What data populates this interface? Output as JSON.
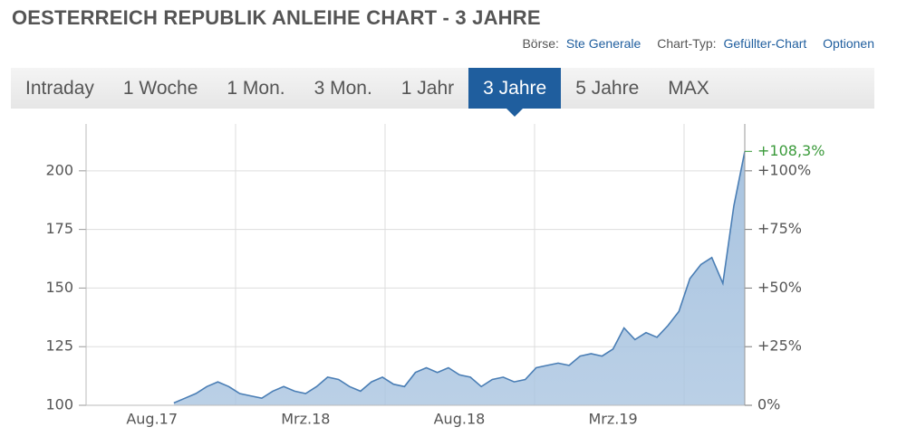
{
  "header": {
    "title": "OESTERREICH REPUBLIK ANLEIHE CHART - 3 JAHRE",
    "boerse_label": "Börse:",
    "boerse": "Ste Generale",
    "charttyp_label": "Chart-Typ:",
    "charttyp": "Gefüllter-Chart",
    "optionen": "Optionen"
  },
  "tabs": [
    "Intraday",
    "1 Woche",
    "1 Mon.",
    "3 Mon.",
    "1 Jahr",
    "3 Jahre",
    "5 Jahre",
    "MAX"
  ],
  "active_tab": 5,
  "chart_data": {
    "type": "area",
    "categories": [
      null,
      null,
      null,
      null,
      null,
      null,
      "Aug.17",
      null,
      null,
      null,
      null,
      null,
      null,
      null,
      null,
      null,
      null,
      null,
      null,
      null,
      "Mrz.18",
      null,
      null,
      null,
      null,
      null,
      null,
      null,
      null,
      null,
      null,
      null,
      null,
      null,
      "Aug.18",
      null,
      null,
      null,
      null,
      null,
      null,
      null,
      null,
      null,
      null,
      null,
      null,
      null,
      "Mrz.19",
      null,
      null,
      null,
      null,
      null,
      null,
      null,
      null,
      null,
      null,
      null,
      null
    ],
    "series": [
      {
        "name": "Oesterreich Republik Anleihe",
        "color": "#4a7eb5",
        "fill": "#a9c4e0",
        "values": [
          null,
          null,
          null,
          null,
          null,
          null,
          null,
          null,
          101,
          103,
          105,
          108,
          110,
          108,
          105,
          104,
          103,
          106,
          108,
          106,
          105,
          108,
          112,
          111,
          108,
          106,
          110,
          112,
          109,
          108,
          114,
          116,
          114,
          116,
          113,
          112,
          108,
          111,
          112,
          110,
          111,
          116,
          117,
          118,
          117,
          121,
          122,
          121,
          124,
          133,
          128,
          131,
          129,
          134,
          140,
          154,
          160,
          163,
          152,
          185,
          208.3
        ]
      }
    ],
    "ylim": [
      100,
      220
    ],
    "yticks": [
      100,
      125,
      150,
      175,
      200
    ],
    "y2lim": [
      0,
      120
    ],
    "y2ticks": [
      {
        "value": 0,
        "label": "0%"
      },
      {
        "value": 25,
        "label": "+25%"
      },
      {
        "value": 50,
        "label": "+50%"
      },
      {
        "value": 75,
        "label": "+75%"
      },
      {
        "value": 100,
        "label": "+100%"
      }
    ],
    "annotation": {
      "text": "+108,3%",
      "value": 108.3,
      "color": "#3a9a3a"
    },
    "grid": true
  }
}
